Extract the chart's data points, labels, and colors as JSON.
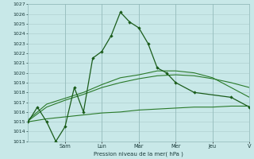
{
  "background_color": "#c8e8e8",
  "grid_color": "#b0d0d0",
  "line_color_dark": "#1a5c1a",
  "line_color_mid": "#2a7a2a",
  "ylabel": "Pression niveau de la mer( hPa )",
  "ylim": [
    1013,
    1027
  ],
  "xlim": [
    0,
    12
  ],
  "day_positions": [
    2,
    4,
    6,
    8,
    10,
    12
  ],
  "day_labels": [
    "Sam",
    "Lun",
    "Mar",
    "Mer",
    "Jeu",
    "V"
  ],
  "series1_x": [
    0,
    0.5,
    1,
    1.5,
    2,
    2.5,
    3,
    3.5,
    4,
    4.5,
    5,
    5.5,
    6,
    6.5,
    7,
    7.5,
    8,
    9,
    11,
    12
  ],
  "series1_y": [
    1015.0,
    1016.5,
    1015.0,
    1013.0,
    1014.5,
    1018.5,
    1016.0,
    1021.5,
    1022.2,
    1023.8,
    1026.2,
    1025.2,
    1024.6,
    1023.0,
    1020.5,
    1020.0,
    1019.0,
    1018.0,
    1017.5,
    1016.5
  ],
  "series2_x": [
    0,
    1,
    2,
    3,
    4,
    5,
    6,
    7,
    8,
    9,
    10,
    11,
    12
  ],
  "series2_y": [
    1015.2,
    1016.8,
    1017.4,
    1018.0,
    1018.8,
    1019.5,
    1019.8,
    1020.2,
    1020.2,
    1020.0,
    1019.5,
    1018.5,
    1017.5
  ],
  "series3_x": [
    0,
    1,
    2,
    3,
    4,
    5,
    6,
    7,
    8,
    9,
    10,
    11,
    12
  ],
  "series3_y": [
    1015.0,
    1015.3,
    1015.5,
    1015.7,
    1015.9,
    1016.0,
    1016.2,
    1016.3,
    1016.4,
    1016.5,
    1016.5,
    1016.6,
    1016.6
  ],
  "series4_x": [
    0,
    1,
    2,
    3,
    4,
    5,
    6,
    7,
    8,
    9,
    10,
    11,
    12
  ],
  "series4_y": [
    1015.1,
    1016.5,
    1017.2,
    1017.8,
    1018.5,
    1019.0,
    1019.4,
    1019.7,
    1019.8,
    1019.7,
    1019.4,
    1019.0,
    1018.5
  ]
}
